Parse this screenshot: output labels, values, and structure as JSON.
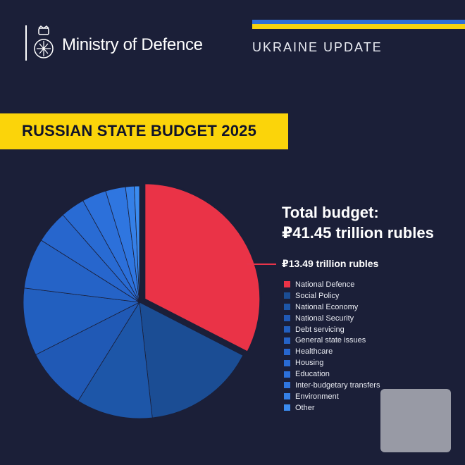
{
  "header": {
    "brand": "Ministry of Defence",
    "section": "UKRAINE UPDATE",
    "flag_colors": {
      "blue": "#2f6fd6",
      "yellow": "#f5d20f"
    }
  },
  "chart_data": {
    "type": "pie",
    "title": "RUSSIAN STATE BUDGET 2025",
    "total_label": "Total budget:",
    "total_value": "₽41.45 trillion rubles",
    "highlight_label": "₽13.49 trillion rubles",
    "series": [
      {
        "name": "National Defence",
        "value": 13.49,
        "color": "#ea3347"
      },
      {
        "name": "Social Policy",
        "value": 6.5,
        "color": "#1b4d94"
      },
      {
        "name": "National Economy",
        "value": 4.4,
        "color": "#1d56a8"
      },
      {
        "name": "National Security",
        "value": 3.6,
        "color": "#2059b5"
      },
      {
        "name": "Debt servicing",
        "value": 3.9,
        "color": "#225fbf"
      },
      {
        "name": "General state issues",
        "value": 2.9,
        "color": "#2563c7"
      },
      {
        "name": "Healthcare",
        "value": 1.9,
        "color": "#2766cd"
      },
      {
        "name": "Housing",
        "value": 1.4,
        "color": "#296bd3"
      },
      {
        "name": "Education",
        "value": 1.4,
        "color": "#2c70da"
      },
      {
        "name": "Inter-budgetary transfers",
        "value": 1.15,
        "color": "#2f76e0"
      },
      {
        "name": "Environment",
        "value": 0.5,
        "color": "#3580e7"
      },
      {
        "name": "Other",
        "value": 0.3,
        "color": "#3b8cf0"
      }
    ]
  }
}
